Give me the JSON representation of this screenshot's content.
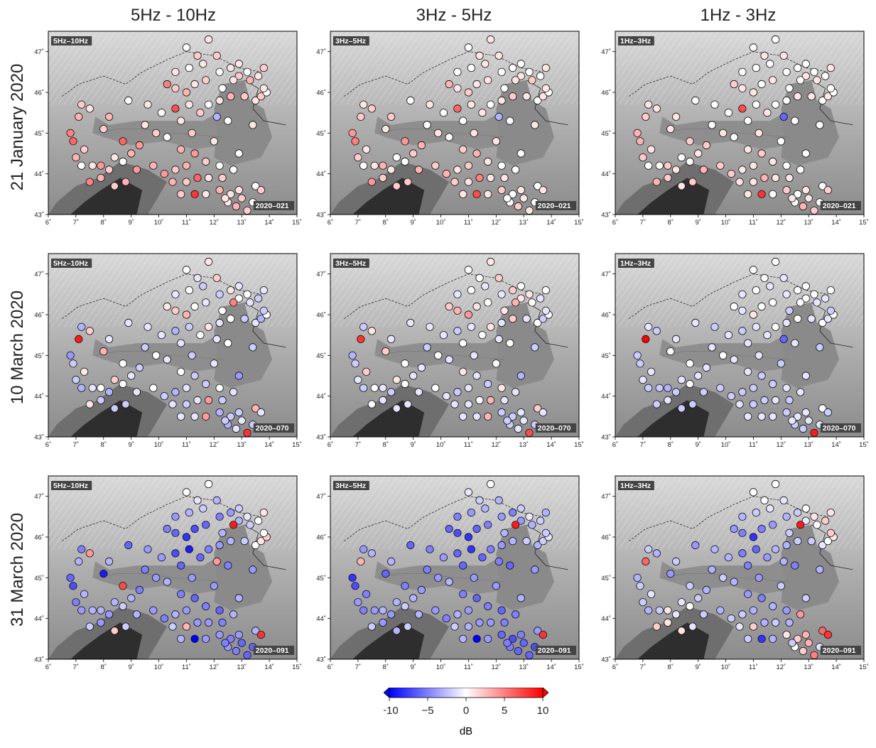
{
  "column_titles": [
    "5Hz - 10Hz",
    "3Hz - 5Hz",
    "1Hz - 3Hz"
  ],
  "row_titles": [
    "21 January 2020",
    "10 March 2020",
    "31 March 2020"
  ],
  "panel_band_labels": [
    "5Hz–10Hz",
    "3Hz–5Hz",
    "1Hz–3Hz"
  ],
  "panel_date_labels": [
    "2020–021",
    "2020–070",
    "2020–091"
  ],
  "x_ticks": [
    "6˚",
    "7˚",
    "8˚",
    "9˚",
    "10˚",
    "11˚",
    "12˚",
    "13˚",
    "14˚",
    "15˚"
  ],
  "y_ticks": [
    "43˚",
    "44˚",
    "45˚",
    "46˚",
    "47˚"
  ],
  "colorbar": {
    "label": "dB",
    "ticks": [
      "−10",
      "−5",
      "0",
      "5",
      "10"
    ],
    "range": [
      -10,
      10
    ],
    "colors": [
      "#0000ff",
      "#ffffff",
      "#ff0000"
    ]
  },
  "chart_data": {
    "type": "scatter",
    "xlim": [
      6,
      15
    ],
    "ylim": [
      43,
      47.5
    ],
    "value_unit": "dB",
    "stations": [
      [
        7.2,
        45.7
      ],
      [
        7.5,
        45.6
      ],
      [
        7.1,
        45.4
      ],
      [
        6.8,
        45.0
      ],
      [
        6.9,
        44.8
      ],
      [
        7.3,
        44.6
      ],
      [
        7.0,
        44.4
      ],
      [
        7.2,
        44.2
      ],
      [
        7.6,
        44.2
      ],
      [
        7.9,
        44.2
      ],
      [
        7.5,
        43.8
      ],
      [
        7.9,
        43.9
      ],
      [
        8.2,
        44.1
      ],
      [
        8.4,
        44.4
      ],
      [
        8.7,
        44.3
      ],
      [
        9.0,
        44.5
      ],
      [
        9.3,
        44.7
      ],
      [
        8.7,
        44.8
      ],
      [
        8.0,
        45.1
      ],
      [
        9.5,
        45.2
      ],
      [
        10.1,
        45.5
      ],
      [
        9.9,
        45.0
      ],
      [
        10.6,
        45.6
      ],
      [
        11.1,
        45.7
      ],
      [
        11.5,
        45.5
      ],
      [
        11.8,
        45.7
      ],
      [
        12.2,
        45.8
      ],
      [
        12.6,
        45.9
      ],
      [
        13.1,
        45.9
      ],
      [
        13.5,
        45.8
      ],
      [
        13.7,
        45.9
      ],
      [
        13.9,
        46.0
      ],
      [
        13.8,
        46.1
      ],
      [
        13.3,
        46.3
      ],
      [
        12.9,
        46.4
      ],
      [
        12.6,
        46.6
      ],
      [
        12.2,
        46.5
      ],
      [
        11.7,
        46.3
      ],
      [
        11.3,
        46.2
      ],
      [
        11.0,
        46.0
      ],
      [
        10.6,
        46.1
      ],
      [
        10.3,
        46.2
      ],
      [
        10.6,
        46.5
      ],
      [
        11.1,
        46.6
      ],
      [
        11.6,
        46.7
      ],
      [
        11.4,
        46.9
      ],
      [
        11.0,
        47.1
      ],
      [
        11.8,
        47.3
      ],
      [
        12.1,
        46.9
      ],
      [
        12.9,
        46.7
      ],
      [
        13.2,
        46.5
      ],
      [
        13.6,
        46.4
      ],
      [
        13.8,
        46.6
      ],
      [
        12.7,
        46.3
      ],
      [
        12.3,
        46.1
      ],
      [
        10.8,
        45.3
      ],
      [
        11.2,
        45.0
      ],
      [
        10.3,
        44.9
      ],
      [
        10.8,
        44.6
      ],
      [
        11.3,
        44.5
      ],
      [
        12.0,
        44.8
      ],
      [
        11.7,
        44.3
      ],
      [
        12.2,
        44.2
      ],
      [
        11.0,
        44.2
      ],
      [
        10.6,
        44.1
      ],
      [
        10.2,
        44.0
      ],
      [
        10.5,
        43.8
      ],
      [
        11.0,
        43.8
      ],
      [
        11.4,
        43.9
      ],
      [
        11.8,
        43.9
      ],
      [
        12.3,
        43.9
      ],
      [
        12.7,
        44.1
      ],
      [
        12.2,
        43.6
      ],
      [
        12.6,
        43.5
      ],
      [
        13.0,
        43.4
      ],
      [
        13.4,
        43.3
      ],
      [
        12.5,
        43.3
      ],
      [
        12.8,
        43.2
      ],
      [
        13.2,
        43.1
      ],
      [
        12.9,
        43.6
      ],
      [
        13.5,
        43.7
      ],
      [
        13.7,
        43.6
      ],
      [
        12.4,
        43.4
      ],
      [
        11.3,
        43.5
      ],
      [
        11.7,
        43.5
      ],
      [
        10.8,
        43.5
      ],
      [
        9.8,
        44.2
      ],
      [
        9.2,
        44.1
      ],
      [
        8.8,
        43.8
      ],
      [
        8.4,
        43.7
      ],
      [
        9.6,
        45.7
      ],
      [
        8.9,
        45.8
      ],
      [
        8.2,
        45.4
      ],
      [
        12.9,
        44.5
      ],
      [
        13.4,
        45.2
      ],
      [
        12.1,
        45.4
      ],
      [
        12.5,
        45.3
      ]
    ],
    "series": [
      {
        "name": "5Hz–10Hz / 2020–021",
        "values": [
          2,
          1,
          3,
          5,
          6,
          2,
          3,
          0,
          1,
          4,
          5,
          3,
          2,
          1,
          0,
          3,
          4,
          6,
          2,
          1,
          0,
          2,
          7,
          1,
          2,
          0,
          1,
          3,
          2,
          1,
          2,
          0,
          1,
          3,
          2,
          1,
          0,
          2,
          1,
          3,
          2,
          5,
          1,
          0,
          1,
          2,
          0,
          1,
          2,
          1,
          0,
          1,
          2,
          1,
          0,
          1,
          2,
          0,
          3,
          4,
          1,
          2,
          0,
          3,
          2,
          4,
          3,
          2,
          6,
          1,
          2,
          0,
          3,
          1,
          2,
          0,
          1,
          3,
          2,
          1,
          0,
          2,
          1,
          8,
          1,
          2,
          3,
          4,
          3,
          2,
          1,
          0,
          3,
          0,
          1,
          -3,
          0
        ]
      },
      {
        "name": "3Hz–5Hz / 2020–021",
        "values": [
          1,
          2,
          2,
          4,
          5,
          1,
          2,
          0,
          1,
          3,
          4,
          2,
          1,
          0,
          0,
          2,
          3,
          4,
          1,
          0,
          0,
          1,
          6,
          1,
          1,
          0,
          1,
          2,
          1,
          0,
          1,
          0,
          1,
          2,
          1,
          0,
          0,
          1,
          1,
          2,
          1,
          3,
          0,
          0,
          1,
          1,
          0,
          1,
          1,
          0,
          0,
          0,
          1,
          1,
          0,
          0,
          1,
          0,
          2,
          3,
          1,
          1,
          0,
          2,
          1,
          3,
          2,
          1,
          5,
          1,
          1,
          0,
          2,
          0,
          1,
          0,
          0,
          2,
          1,
          1,
          0,
          1,
          0,
          7,
          1,
          1,
          2,
          3,
          2,
          2,
          1,
          0,
          2,
          0,
          1,
          -3,
          0
        ]
      },
      {
        "name": "1Hz–3Hz / 2020–021",
        "values": [
          1,
          1,
          2,
          3,
          3,
          1,
          2,
          0,
          0,
          2,
          3,
          2,
          1,
          0,
          0,
          1,
          2,
          2,
          1,
          0,
          0,
          1,
          7,
          0,
          1,
          0,
          0,
          1,
          1,
          0,
          1,
          0,
          0,
          1,
          1,
          0,
          0,
          1,
          0,
          1,
          1,
          2,
          0,
          0,
          0,
          1,
          0,
          0,
          1,
          0,
          0,
          0,
          1,
          0,
          0,
          0,
          1,
          0,
          1,
          2,
          0,
          1,
          0,
          1,
          1,
          2,
          1,
          1,
          3,
          1,
          1,
          0,
          2,
          0,
          1,
          0,
          0,
          3,
          2,
          1,
          0,
          2,
          1,
          8,
          0,
          1,
          2,
          3,
          2,
          1,
          0,
          0,
          1,
          0,
          0,
          -6,
          0
        ]
      },
      {
        "name": "5Hz–10Hz / 2020–070",
        "values": [
          -3,
          2,
          9,
          -4,
          -2,
          1,
          -2,
          -3,
          -1,
          0,
          1,
          -2,
          -3,
          2,
          0,
          -1,
          -2,
          0,
          3,
          -2,
          -1,
          0,
          -3,
          -2,
          0,
          1,
          -1,
          0,
          -2,
          -1,
          -3,
          0,
          -2,
          -1,
          0,
          1,
          -2,
          -1,
          0,
          3,
          2,
          1,
          -1,
          0,
          -2,
          -1,
          0,
          1,
          2,
          -1,
          0,
          -2,
          -1,
          5,
          0,
          -1,
          -2,
          -1,
          0,
          -2,
          -1,
          -2,
          0,
          -1,
          -3,
          -2,
          -1,
          -2,
          -1,
          4,
          -2,
          -1,
          -3,
          -2,
          -1,
          -2,
          -3,
          -1,
          8,
          -2,
          3,
          -1,
          -2,
          -1,
          4,
          -1,
          0,
          -1,
          -2,
          -2,
          -1,
          -1,
          -1,
          -4,
          -2,
          -1,
          0
        ]
      },
      {
        "name": "3Hz–5Hz / 2020–070",
        "values": [
          -2,
          1,
          8,
          -3,
          -2,
          2,
          -1,
          -2,
          0,
          -1,
          0,
          -1,
          -2,
          1,
          0,
          -1,
          -1,
          0,
          2,
          -2,
          -1,
          0,
          -2,
          -1,
          0,
          1,
          -1,
          2,
          -1,
          0,
          -2,
          0,
          -1,
          0,
          1,
          2,
          -1,
          0,
          1,
          4,
          3,
          2,
          -1,
          0,
          -1,
          0,
          0,
          1,
          2,
          0,
          1,
          -1,
          0,
          3,
          1,
          0,
          -1,
          -1,
          1,
          -1,
          0,
          -2,
          1,
          -1,
          -2,
          -1,
          -1,
          -1,
          0,
          3,
          -1,
          -1,
          -2,
          -2,
          -1,
          -2,
          -2,
          -1,
          7,
          -1,
          2,
          -1,
          -2,
          -1,
          3,
          -1,
          0,
          -1,
          -1,
          -1,
          -1,
          -1,
          -1,
          -3,
          -2,
          -1,
          0
        ]
      },
      {
        "name": "1Hz–3Hz / 2020–070",
        "values": [
          -1,
          -2,
          10,
          -2,
          -2,
          -1,
          -1,
          -2,
          -2,
          -3,
          -2,
          -1,
          -2,
          -1,
          0,
          -1,
          -1,
          0,
          0,
          -1,
          -1,
          0,
          -2,
          -1,
          -1,
          0,
          -1,
          0,
          -1,
          0,
          -1,
          0,
          -2,
          -1,
          0,
          0,
          -1,
          0,
          0,
          1,
          -1,
          0,
          -1,
          0,
          -1,
          0,
          0,
          0,
          -1,
          0,
          0,
          -1,
          0,
          0,
          -2,
          -1,
          -1,
          -1,
          -1,
          -2,
          -2,
          -2,
          -1,
          -2,
          -2,
          -2,
          -1,
          -2,
          -2,
          -1,
          -2,
          -1,
          -2,
          -1,
          -1,
          -1,
          -2,
          -2,
          9,
          -1,
          0,
          -2,
          -1,
          -1,
          -1,
          -1,
          -2,
          -2,
          -2,
          -2,
          -2,
          -1,
          -1,
          -1,
          -2,
          -6,
          -1,
          -1
        ]
      },
      {
        "name": "5Hz–10Hz / 2020–091",
        "values": [
          -5,
          4,
          -3,
          -6,
          -7,
          -3,
          -5,
          -4,
          -3,
          -3,
          -2,
          -4,
          -4,
          -3,
          -2,
          -3,
          -5,
          7,
          -9,
          -5,
          -4,
          -4,
          -7,
          -9,
          -6,
          -5,
          -4,
          -3,
          -2,
          0,
          1,
          2,
          0,
          -2,
          -3,
          -4,
          -5,
          -6,
          -7,
          -8,
          -6,
          -5,
          -4,
          -3,
          -2,
          -1,
          0,
          0,
          -3,
          -2,
          -1,
          0,
          1,
          9,
          -3,
          -6,
          -4,
          -3,
          -5,
          -6,
          -4,
          -5,
          -6,
          -4,
          -3,
          -5,
          -2,
          3,
          -4,
          -4,
          -5,
          -3,
          -4,
          -5,
          -6,
          -6,
          -4,
          -5,
          -6,
          -4,
          -3,
          8,
          -5,
          -10,
          -4,
          -3,
          -4,
          -3,
          -2,
          2,
          -4,
          -6,
          -3,
          -3,
          -4,
          4,
          -5
        ]
      },
      {
        "name": "3Hz–5Hz / 2020–091",
        "values": [
          -4,
          -3,
          3,
          -8,
          -7,
          -5,
          -4,
          -5,
          -4,
          -3,
          -2,
          -4,
          -4,
          -3,
          -2,
          -3,
          -4,
          -5,
          -6,
          -5,
          -4,
          -4,
          -6,
          -8,
          -6,
          -5,
          -4,
          -3,
          -2,
          -3,
          -2,
          -1,
          -2,
          -3,
          -4,
          -5,
          -4,
          -5,
          -6,
          -8,
          -7,
          -6,
          -5,
          -4,
          -3,
          -2,
          -1,
          0,
          -3,
          -2,
          -1,
          -2,
          -3,
          9,
          -3,
          -6,
          -4,
          -3,
          -5,
          -6,
          -4,
          -5,
          -6,
          -4,
          -3,
          -5,
          -2,
          -3,
          -4,
          -4,
          -5,
          -5,
          -6,
          -7,
          -6,
          -7,
          -5,
          -6,
          -6,
          -5,
          -4,
          8,
          -5,
          -10,
          -4,
          -3,
          -4,
          -3,
          -2,
          -3,
          -5,
          -6,
          -3,
          -3,
          -4,
          -5,
          -6
        ]
      },
      {
        "name": "1Hz–3Hz / 2020–091",
        "values": [
          -2,
          -3,
          6,
          -3,
          -2,
          -1,
          -2,
          -3,
          -2,
          1,
          2,
          1,
          -1,
          -1,
          0,
          -2,
          -3,
          -2,
          -4,
          -3,
          -3,
          -2,
          -5,
          -6,
          -4,
          -3,
          -3,
          -2,
          -2,
          -1,
          0,
          1,
          2,
          0,
          -1,
          -2,
          -3,
          -4,
          -5,
          -8,
          -5,
          -4,
          -3,
          -2,
          -1,
          0,
          0,
          0,
          -1,
          0,
          1,
          2,
          1,
          9,
          -2,
          -5,
          -4,
          -3,
          -4,
          -5,
          -2,
          -3,
          -4,
          -3,
          -2,
          -2,
          -1,
          2,
          -3,
          -2,
          -3,
          4,
          1,
          2,
          3,
          -1,
          0,
          2,
          5,
          3,
          6,
          8,
          -2,
          -8,
          -3,
          -2,
          -3,
          -2,
          -1,
          1,
          -3,
          -4,
          -2,
          -2,
          -3,
          -3,
          -5
        ]
      }
    ]
  }
}
